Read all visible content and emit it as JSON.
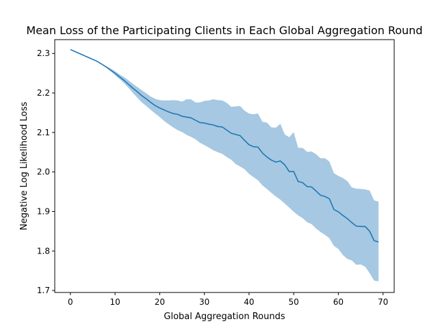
{
  "chart_data": {
    "type": "line",
    "title": "Mean Loss of the Participating Clients in Each Global Aggregation Round",
    "xlabel": "Global Aggregation Rounds",
    "ylabel": "Negative Log Likelihood Loss",
    "xlim": [
      -3.5,
      72.5
    ],
    "ylim": [
      1.695,
      2.335
    ],
    "xticks": [
      0,
      10,
      20,
      30,
      40,
      50,
      60,
      70
    ],
    "yticks": [
      1.7,
      1.8,
      1.9,
      2.0,
      2.1,
      2.2,
      2.3
    ],
    "grid": false,
    "legend": "none",
    "colors": {
      "line": "#1f77b4",
      "band": "#a6c8e2"
    },
    "series": [
      {
        "x": [
          0,
          1,
          2,
          3,
          4,
          5,
          6,
          7,
          8,
          9,
          10,
          11,
          12,
          13,
          14,
          15,
          16,
          17,
          18,
          19,
          20,
          21,
          22,
          23,
          24,
          25,
          26,
          27,
          28,
          29,
          30,
          31,
          32,
          33,
          34,
          35,
          36,
          37,
          38,
          39,
          40,
          41,
          42,
          43,
          44,
          45,
          46,
          47,
          48,
          49,
          50,
          51,
          52,
          53,
          54,
          55,
          56,
          57,
          58,
          59,
          60,
          61,
          62,
          63,
          64,
          65,
          66,
          67,
          68,
          69
        ],
        "mean": [
          2.31,
          2.305,
          2.3,
          2.295,
          2.29,
          2.285,
          2.28,
          2.273,
          2.266,
          2.258,
          2.25,
          2.241,
          2.232,
          2.222,
          2.212,
          2.203,
          2.193,
          2.185,
          2.176,
          2.168,
          2.162,
          2.157,
          2.152,
          2.148,
          2.146,
          2.141,
          2.139,
          2.137,
          2.131,
          2.125,
          2.124,
          2.121,
          2.119,
          2.115,
          2.114,
          2.106,
          2.098,
          2.095,
          2.092,
          2.08,
          2.069,
          2.064,
          2.063,
          2.048,
          2.038,
          2.03,
          2.025,
          2.028,
          2.018,
          2.001,
          2.001,
          1.976,
          1.973,
          1.963,
          1.962,
          1.952,
          1.941,
          1.938,
          1.932,
          1.905,
          1.899,
          1.89,
          1.882,
          1.872,
          1.863,
          1.862,
          1.862,
          1.85,
          1.826,
          1.823
        ],
        "upper": [
          2.31,
          2.305,
          2.3,
          2.295,
          2.29,
          2.285,
          2.28,
          2.274,
          2.268,
          2.262,
          2.255,
          2.247,
          2.24,
          2.232,
          2.223,
          2.215,
          2.207,
          2.199,
          2.191,
          2.185,
          2.182,
          2.181,
          2.181,
          2.182,
          2.181,
          2.178,
          2.184,
          2.184,
          2.176,
          2.176,
          2.18,
          2.181,
          2.184,
          2.182,
          2.181,
          2.175,
          2.165,
          2.166,
          2.167,
          2.155,
          2.148,
          2.146,
          2.148,
          2.127,
          2.125,
          2.113,
          2.112,
          2.122,
          2.095,
          2.088,
          2.101,
          2.061,
          2.061,
          2.051,
          2.052,
          2.045,
          2.035,
          2.035,
          2.026,
          1.997,
          1.99,
          1.985,
          1.977,
          1.961,
          1.958,
          1.957,
          1.956,
          1.953,
          1.928,
          1.925
        ],
        "lower": [
          2.31,
          2.305,
          2.3,
          2.295,
          2.29,
          2.285,
          2.28,
          2.272,
          2.264,
          2.255,
          2.245,
          2.235,
          2.225,
          2.213,
          2.2,
          2.188,
          2.176,
          2.167,
          2.157,
          2.148,
          2.139,
          2.129,
          2.121,
          2.113,
          2.106,
          2.101,
          2.094,
          2.089,
          2.083,
          2.074,
          2.068,
          2.062,
          2.055,
          2.05,
          2.046,
          2.038,
          2.031,
          2.02,
          2.014,
          2.007,
          1.995,
          1.987,
          1.979,
          1.966,
          1.957,
          1.947,
          1.938,
          1.93,
          1.92,
          1.91,
          1.899,
          1.89,
          1.883,
          1.873,
          1.868,
          1.857,
          1.848,
          1.841,
          1.832,
          1.813,
          1.805,
          1.79,
          1.78,
          1.776,
          1.765,
          1.766,
          1.76,
          1.744,
          1.725,
          1.723
        ]
      }
    ]
  }
}
